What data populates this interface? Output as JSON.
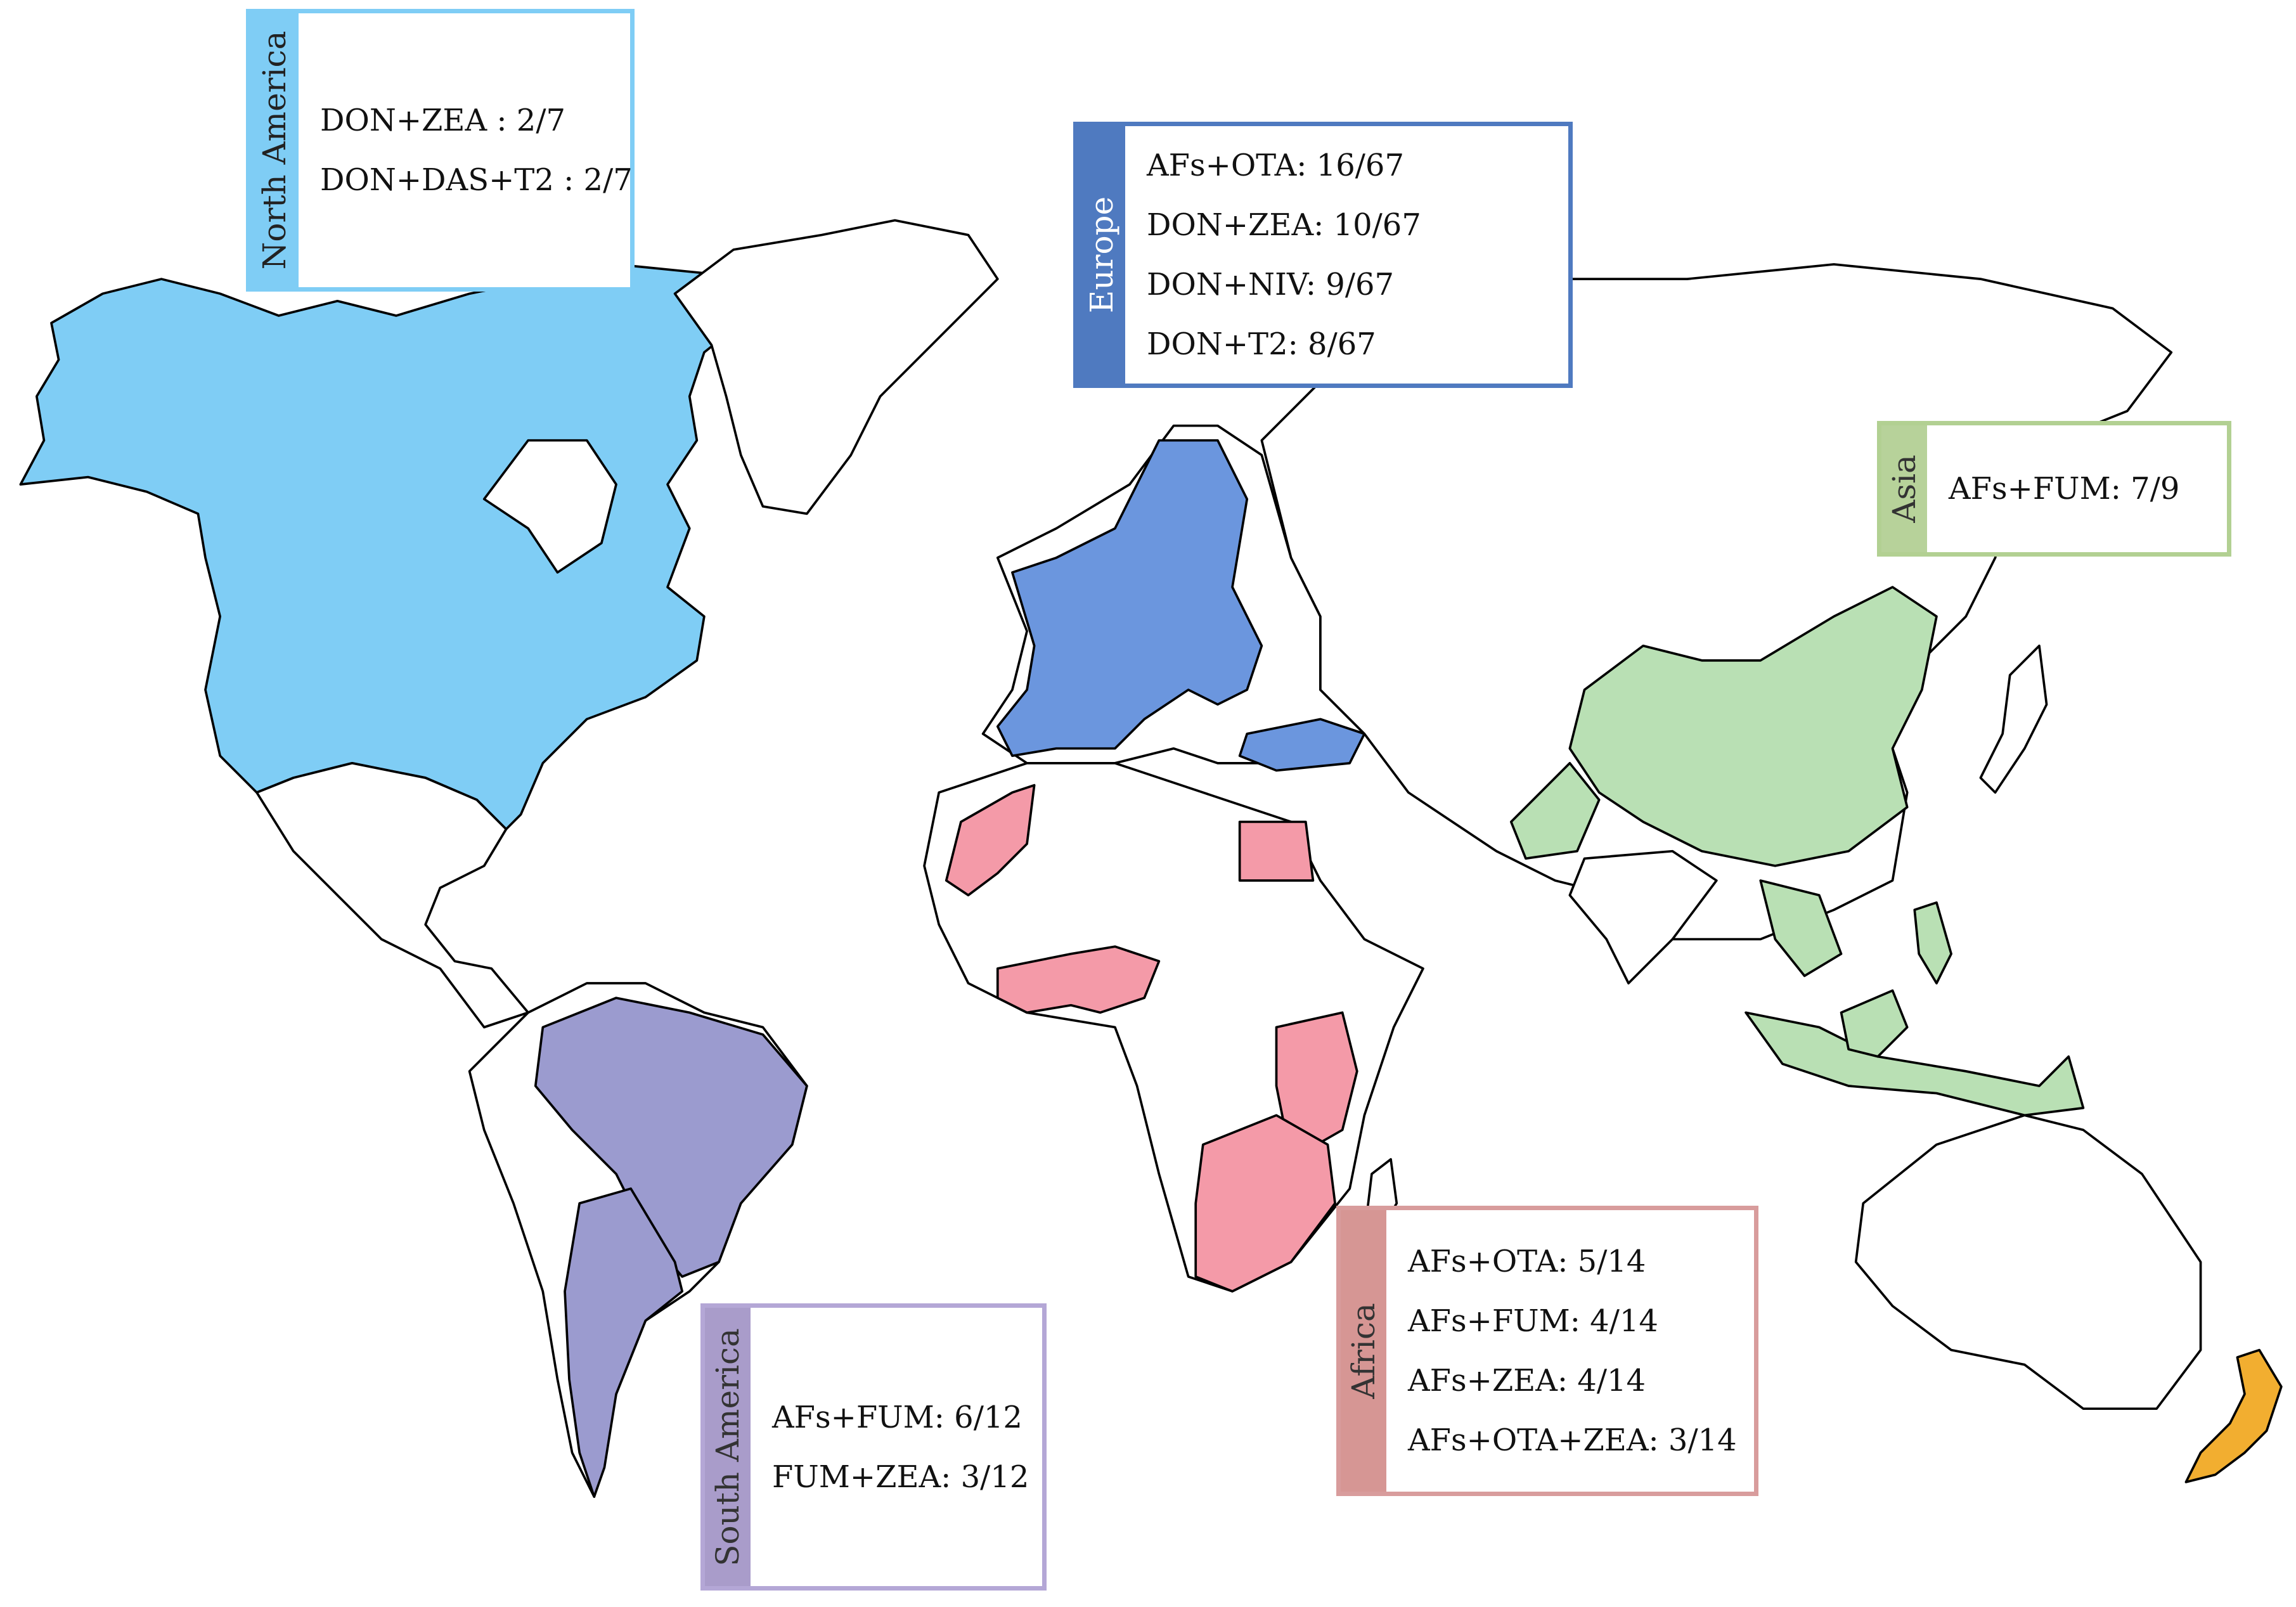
{
  "regions": {
    "north_america": {
      "name": "North America",
      "items": [
        "DON+ZEA : 2/7",
        "DON+DAS+T2 : 2/7"
      ],
      "color": "#7fcdf5",
      "border": "#7fcdf5",
      "tab_bg": "#7fcdf5",
      "tab_text": "#222222"
    },
    "europe": {
      "name": "Europe",
      "items": [
        "AFs+OTA: 16/67",
        "DON+ZEA: 10/67",
        "DON+NIV: 9/67",
        "DON+T2: 8/67"
      ],
      "color": "#6b96de",
      "border": "#4f7ac0",
      "tab_bg": "#4f7ac0",
      "tab_text": "#ffffff"
    },
    "asia": {
      "name": "Asia",
      "items": [
        "AFs+FUM: 7/9"
      ],
      "color": "#b9e0b4",
      "border": "#b2d092",
      "tab_bg": "#b7d29a",
      "tab_text": "#333333"
    },
    "africa": {
      "name": "Africa",
      "items": [
        "AFs+OTA: 5/14",
        "AFs+FUM: 4/14",
        "AFs+ZEA: 4/14",
        "AFs+OTA+ZEA: 3/14"
      ],
      "color": "#f49aa8",
      "border": "#d89c9c",
      "tab_bg": "#d69694",
      "tab_text": "#333333"
    },
    "south_america": {
      "name": "South America",
      "items": [
        "AFs+FUM: 6/12",
        "FUM+ZEA: 3/12"
      ],
      "color": "#9b9bcf",
      "border": "#b4a7d6",
      "tab_bg": "#a99cca",
      "tab_text": "#333333"
    }
  },
  "oceania_highlight_color": "#f2ae30",
  "country_fill_default": "#ffffff",
  "country_outline_color": "#000000"
}
